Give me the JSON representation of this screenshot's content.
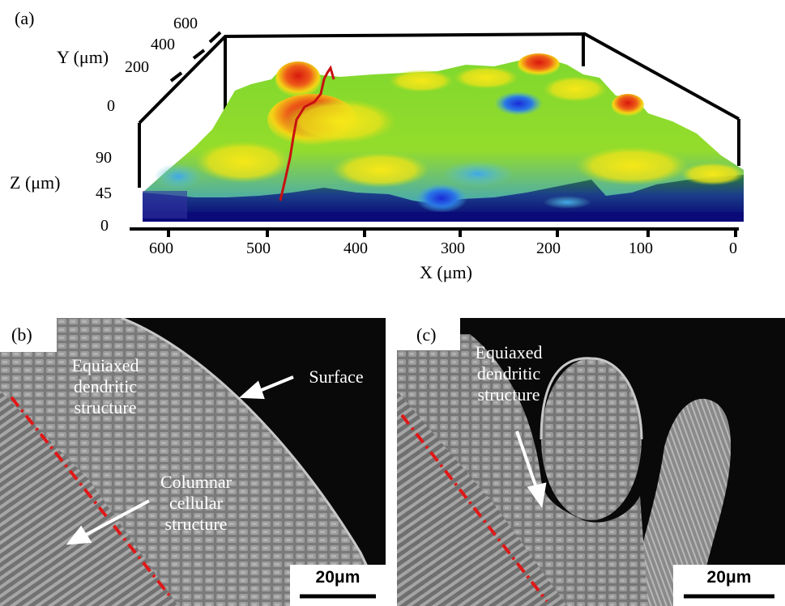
{
  "panel_a": {
    "label": "(a)",
    "y_axis_title": "Y (μm)",
    "z_axis_title": "Z (μm)",
    "x_axis_title": "X (μm)",
    "y_ticks": [
      "600",
      "400",
      "200",
      "0"
    ],
    "z_ticks": [
      "90",
      "45",
      "0"
    ],
    "x_ticks": [
      "600",
      "500",
      "400",
      "300",
      "200",
      "100",
      "0"
    ],
    "colors": {
      "high": "#e02010",
      "mid_high": "#f2e410",
      "mid": "#7cd62c",
      "low": "#2f7de8",
      "base": "#0a0a90"
    }
  },
  "panel_b": {
    "label": "(b)",
    "annotations": {
      "equiaxed": [
        "Equiaxed",
        "dendritic",
        "structure"
      ],
      "columnar": [
        "Columnar",
        "cellular",
        "structure"
      ],
      "surface": "Surface"
    },
    "scale_bar": "20μm"
  },
  "panel_c": {
    "label": "(c)",
    "annotations": {
      "equiaxed": [
        "Equiaxed",
        "dendritic",
        "structure"
      ]
    },
    "scale_bar": "20μm"
  }
}
